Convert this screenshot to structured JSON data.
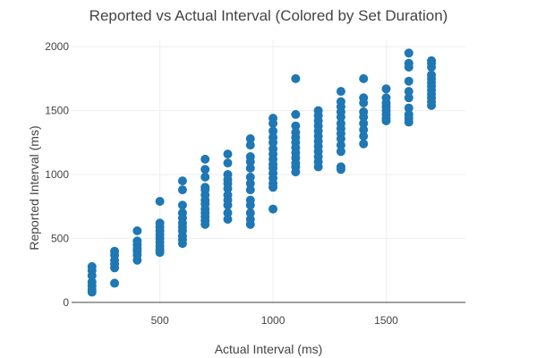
{
  "colors": {
    "marker": "#1f77b4",
    "grid": "#eeeeee",
    "axis_line": "#444444",
    "text": "#444444"
  },
  "chart_data": {
    "type": "scatter",
    "title": "Reported vs Actual Interval (Colored by Set Duration)",
    "xlabel": "Actual Interval (ms)",
    "ylabel": "Reported Interval (ms)",
    "xlim": [
      110,
      1850
    ],
    "ylim": [
      -15,
      2050
    ],
    "x_ticks": [
      500,
      1000,
      1500
    ],
    "y_ticks": [
      0,
      500,
      1000,
      1500,
      2000
    ],
    "grid": true,
    "legend": "none",
    "series": [
      {
        "points": [
          [
            200,
            280
          ],
          [
            200,
            250
          ],
          [
            200,
            210
          ],
          [
            200,
            160
          ],
          [
            200,
            130
          ],
          [
            200,
            100
          ],
          [
            200,
            80
          ],
          [
            300,
            400
          ],
          [
            300,
            370
          ],
          [
            300,
            330
          ],
          [
            300,
            300
          ],
          [
            300,
            270
          ],
          [
            300,
            150
          ],
          [
            400,
            560
          ],
          [
            400,
            480
          ],
          [
            400,
            450
          ],
          [
            400,
            420
          ],
          [
            400,
            400
          ],
          [
            400,
            370
          ],
          [
            400,
            330
          ],
          [
            500,
            790
          ],
          [
            500,
            620
          ],
          [
            500,
            590
          ],
          [
            500,
            560
          ],
          [
            500,
            530
          ],
          [
            500,
            500
          ],
          [
            500,
            470
          ],
          [
            500,
            440
          ],
          [
            500,
            410
          ],
          [
            500,
            390
          ],
          [
            600,
            950
          ],
          [
            600,
            880
          ],
          [
            600,
            760
          ],
          [
            600,
            700
          ],
          [
            600,
            660
          ],
          [
            600,
            620
          ],
          [
            600,
            590
          ],
          [
            600,
            560
          ],
          [
            600,
            520
          ],
          [
            600,
            490
          ],
          [
            600,
            460
          ],
          [
            700,
            1120
          ],
          [
            700,
            1040
          ],
          [
            700,
            980
          ],
          [
            700,
            900
          ],
          [
            700,
            880
          ],
          [
            700,
            840
          ],
          [
            700,
            800
          ],
          [
            700,
            770
          ],
          [
            700,
            730
          ],
          [
            700,
            700
          ],
          [
            700,
            670
          ],
          [
            700,
            640
          ],
          [
            700,
            610
          ],
          [
            800,
            1160
          ],
          [
            800,
            1090
          ],
          [
            800,
            1000
          ],
          [
            800,
            960
          ],
          [
            800,
            930
          ],
          [
            800,
            890
          ],
          [
            800,
            840
          ],
          [
            800,
            800
          ],
          [
            800,
            760
          ],
          [
            800,
            700
          ],
          [
            800,
            650
          ],
          [
            900,
            1280
          ],
          [
            900,
            1230
          ],
          [
            900,
            1140
          ],
          [
            900,
            1100
          ],
          [
            900,
            1050
          ],
          [
            900,
            980
          ],
          [
            900,
            930
          ],
          [
            900,
            880
          ],
          [
            900,
            800
          ],
          [
            900,
            760
          ],
          [
            900,
            700
          ],
          [
            900,
            650
          ],
          [
            900,
            610
          ],
          [
            1000,
            1440
          ],
          [
            1000,
            1400
          ],
          [
            1000,
            1340
          ],
          [
            1000,
            1290
          ],
          [
            1000,
            1250
          ],
          [
            1000,
            1200
          ],
          [
            1000,
            1160
          ],
          [
            1000,
            1120
          ],
          [
            1000,
            1080
          ],
          [
            1000,
            1050
          ],
          [
            1000,
            1010
          ],
          [
            1000,
            970
          ],
          [
            1000,
            930
          ],
          [
            1000,
            900
          ],
          [
            1000,
            730
          ],
          [
            1100,
            1750
          ],
          [
            1100,
            1470
          ],
          [
            1100,
            1380
          ],
          [
            1100,
            1330
          ],
          [
            1100,
            1290
          ],
          [
            1100,
            1250
          ],
          [
            1100,
            1210
          ],
          [
            1100,
            1170
          ],
          [
            1100,
            1130
          ],
          [
            1100,
            1090
          ],
          [
            1100,
            1060
          ],
          [
            1100,
            1020
          ],
          [
            1200,
            1500
          ],
          [
            1200,
            1460
          ],
          [
            1200,
            1420
          ],
          [
            1200,
            1380
          ],
          [
            1200,
            1340
          ],
          [
            1200,
            1300
          ],
          [
            1200,
            1260
          ],
          [
            1200,
            1220
          ],
          [
            1200,
            1180
          ],
          [
            1200,
            1140
          ],
          [
            1200,
            1100
          ],
          [
            1200,
            1060
          ],
          [
            1300,
            1650
          ],
          [
            1300,
            1570
          ],
          [
            1300,
            1530
          ],
          [
            1300,
            1490
          ],
          [
            1300,
            1450
          ],
          [
            1300,
            1400
          ],
          [
            1300,
            1360
          ],
          [
            1300,
            1320
          ],
          [
            1300,
            1280
          ],
          [
            1300,
            1230
          ],
          [
            1300,
            1180
          ],
          [
            1300,
            1060
          ],
          [
            1300,
            1040
          ],
          [
            1400,
            1750
          ],
          [
            1400,
            1600
          ],
          [
            1400,
            1560
          ],
          [
            1400,
            1490
          ],
          [
            1400,
            1450
          ],
          [
            1400,
            1400
          ],
          [
            1400,
            1350
          ],
          [
            1400,
            1300
          ],
          [
            1400,
            1240
          ],
          [
            1500,
            1670
          ],
          [
            1500,
            1600
          ],
          [
            1500,
            1560
          ],
          [
            1500,
            1530
          ],
          [
            1500,
            1500
          ],
          [
            1500,
            1470
          ],
          [
            1500,
            1440
          ],
          [
            1500,
            1420
          ],
          [
            1600,
            1950
          ],
          [
            1600,
            1870
          ],
          [
            1600,
            1840
          ],
          [
            1600,
            1730
          ],
          [
            1600,
            1650
          ],
          [
            1600,
            1600
          ],
          [
            1600,
            1520
          ],
          [
            1600,
            1470
          ],
          [
            1600,
            1440
          ],
          [
            1600,
            1410
          ],
          [
            1700,
            1890
          ],
          [
            1700,
            1870
          ],
          [
            1700,
            1840
          ],
          [
            1700,
            1780
          ],
          [
            1700,
            1750
          ],
          [
            1700,
            1720
          ],
          [
            1700,
            1690
          ],
          [
            1700,
            1660
          ],
          [
            1700,
            1630
          ],
          [
            1700,
            1600
          ],
          [
            1700,
            1570
          ],
          [
            1700,
            1540
          ]
        ]
      }
    ]
  }
}
